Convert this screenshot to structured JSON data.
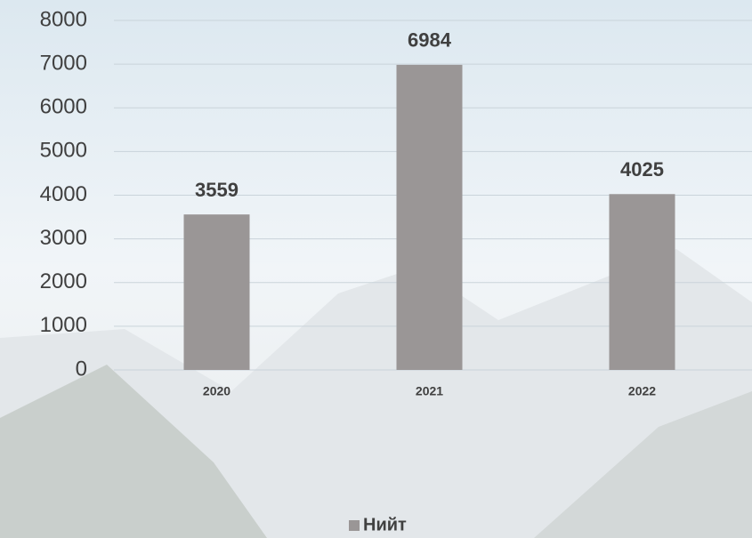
{
  "chart_data": {
    "type": "bar",
    "categories": [
      "2020",
      "2021",
      "2022"
    ],
    "series": [
      {
        "name": "Нийт",
        "color": "#9a9696",
        "values": [
          3559,
          6984,
          4025
        ]
      }
    ],
    "ylim": [
      0,
      8000
    ],
    "yticks": [
      0,
      1000,
      2000,
      3000,
      4000,
      5000,
      6000,
      7000,
      8000
    ],
    "grid": true,
    "legend": "bottom"
  }
}
